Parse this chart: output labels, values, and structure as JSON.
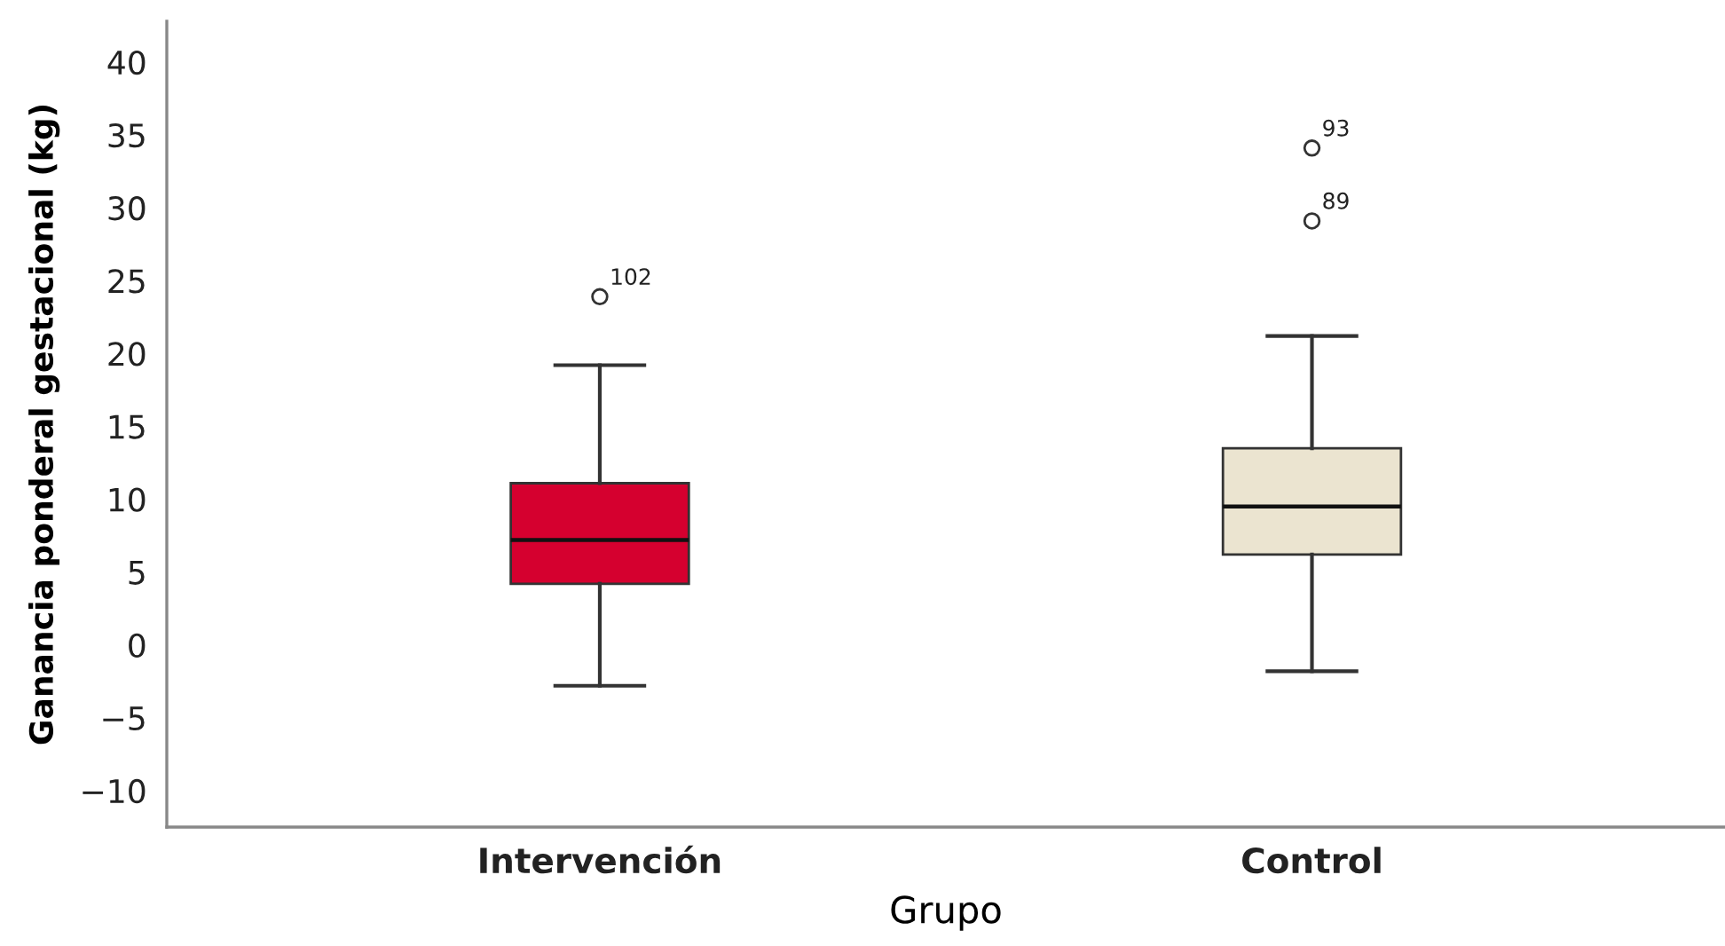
{
  "chart_data": {
    "type": "box",
    "xlabel": "Grupo",
    "ylabel": "Ganancia ponderal gestacional (kg)",
    "categories": [
      "Intervención",
      "Control"
    ],
    "colors": [
      "#d5002f",
      "#ebe4d0"
    ],
    "boxes": [
      {
        "low": -2.8,
        "q1": 4.2,
        "median": 7.2,
        "q3": 11.1,
        "high": 19.2,
        "outliers": [
          23.9
        ]
      },
      {
        "low": -1.8,
        "q1": 6.2,
        "median": 9.5,
        "q3": 13.5,
        "high": 21.2,
        "outliers": [
          34.1,
          29.1
        ]
      }
    ],
    "ylim": [
      -12.5,
      42.8
    ],
    "yticks": [
      {
        "value": -10,
        "label": "−10"
      },
      {
        "value": -5,
        "label": "−5"
      },
      0,
      5,
      10,
      15,
      20,
      25,
      30,
      35,
      40
    ],
    "annotations": [
      "102",
      "93",
      "89"
    ]
  }
}
